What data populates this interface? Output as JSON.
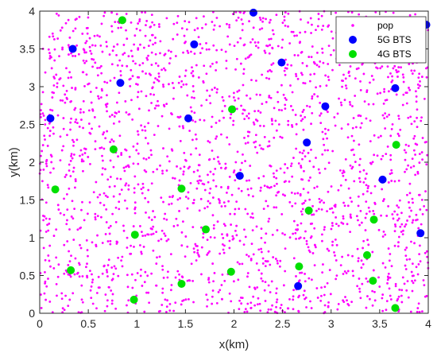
{
  "chart_data": {
    "type": "scatter",
    "xlabel": "x(km)",
    "ylabel": "y(km)",
    "xlim": [
      0,
      4
    ],
    "ylim": [
      0,
      4
    ],
    "xticks": [
      "0",
      "0.5",
      "1",
      "1.5",
      "2",
      "2.5",
      "3",
      "3.5",
      "4"
    ],
    "yticks": [
      "0",
      "0.5",
      "1",
      "1.5",
      "2",
      "2.5",
      "3",
      "3.5",
      "4"
    ],
    "grid": false,
    "legend_position": "top-right",
    "series": [
      {
        "name": "pop",
        "marker": "small-dot",
        "color": "#FF00FF",
        "count": 2200,
        "distribution": "uniform random over [0,4]x[0,4]"
      },
      {
        "name": "5G BTS",
        "marker": "filled-circle",
        "color": "#0000FF",
        "points": [
          [
            0.34,
            3.5
          ],
          [
            0.83,
            3.05
          ],
          [
            1.59,
            3.56
          ],
          [
            2.2,
            3.98
          ],
          [
            2.49,
            3.32
          ],
          [
            2.94,
            2.74
          ],
          [
            3.66,
            2.98
          ],
          [
            3.98,
            3.82
          ],
          [
            0.11,
            2.58
          ],
          [
            1.53,
            2.58
          ],
          [
            2.75,
            2.26
          ],
          [
            2.06,
            1.82
          ],
          [
            3.53,
            1.77
          ],
          [
            3.92,
            1.06
          ],
          [
            2.66,
            0.36
          ]
        ]
      },
      {
        "name": "4G BTS",
        "marker": "filled-circle",
        "color": "#00E000",
        "points": [
          [
            0.85,
            3.88
          ],
          [
            1.98,
            2.7
          ],
          [
            0.76,
            2.17
          ],
          [
            3.67,
            2.23
          ],
          [
            0.16,
            1.64
          ],
          [
            1.46,
            1.65
          ],
          [
            2.77,
            1.36
          ],
          [
            3.44,
            1.24
          ],
          [
            0.98,
            1.04
          ],
          [
            1.71,
            1.11
          ],
          [
            0.32,
            0.57
          ],
          [
            1.97,
            0.55
          ],
          [
            2.67,
            0.62
          ],
          [
            3.37,
            0.77
          ],
          [
            1.46,
            0.39
          ],
          [
            3.43,
            0.43
          ],
          [
            0.97,
            0.18
          ],
          [
            3.66,
            0.07
          ]
        ]
      }
    ]
  }
}
